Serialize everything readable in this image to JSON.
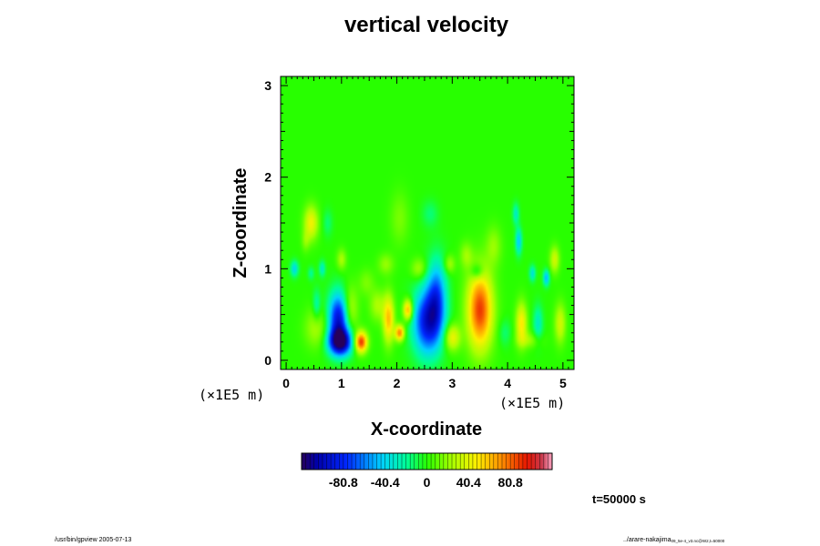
{
  "chart_data": {
    "type": "heatmap",
    "title": "vertical velocity",
    "xlabel": "X-coordinate",
    "ylabel": "Z-coordinate",
    "x_unit": "(×1E5 m)",
    "y_unit": "(×1E5 m)",
    "xlim": [
      -0.1,
      5.2
    ],
    "ylim": [
      -0.1,
      3.1
    ],
    "x_ticks": [
      "0",
      "1",
      "2",
      "3",
      "4",
      "5"
    ],
    "y_ticks": [
      "0",
      "1",
      "2",
      "3"
    ],
    "colorbar": {
      "range": [
        -121.2,
        121.2
      ],
      "ticks": [
        "-80.8",
        "-40.4",
        "0",
        "40.4",
        "80.8"
      ],
      "colormap": "rainbow"
    },
    "time_label": "t=50000 s",
    "background_value": 0,
    "features": [
      {
        "x": 0.95,
        "z": 0.45,
        "value": -95,
        "sx": 0.13,
        "sz": 0.2
      },
      {
        "x": 0.98,
        "z": 0.2,
        "value": -110,
        "sx": 0.15,
        "sz": 0.1
      },
      {
        "x": 2.55,
        "z": 0.42,
        "value": -90,
        "sx": 0.18,
        "sz": 0.25
      },
      {
        "x": 2.72,
        "z": 0.7,
        "value": -60,
        "sx": 0.12,
        "sz": 0.28
      },
      {
        "x": 3.5,
        "z": 0.55,
        "value": 90,
        "sx": 0.16,
        "sz": 0.3
      },
      {
        "x": 1.35,
        "z": 0.2,
        "value": 95,
        "sx": 0.08,
        "sz": 0.08
      },
      {
        "x": 1.15,
        "z": 0.55,
        "value": 35,
        "sx": 0.1,
        "sz": 0.18
      },
      {
        "x": 1.85,
        "z": 0.45,
        "value": 60,
        "sx": 0.07,
        "sz": 0.18
      },
      {
        "x": 2.05,
        "z": 0.3,
        "value": 75,
        "sx": 0.06,
        "sz": 0.06
      },
      {
        "x": 2.2,
        "z": 0.55,
        "value": 70,
        "sx": 0.06,
        "sz": 0.08
      },
      {
        "x": 1.65,
        "z": 0.6,
        "value": 25,
        "sx": 0.1,
        "sz": 0.12
      },
      {
        "x": 4.25,
        "z": 0.4,
        "value": 50,
        "sx": 0.07,
        "sz": 0.16
      },
      {
        "x": 4.95,
        "z": 0.4,
        "value": 35,
        "sx": 0.07,
        "sz": 0.15
      },
      {
        "x": 0.55,
        "z": 0.35,
        "value": 25,
        "sx": 0.15,
        "sz": 0.15
      },
      {
        "x": 0.55,
        "z": 0.6,
        "value": -25,
        "sx": 0.05,
        "sz": 0.12
      },
      {
        "x": 4.55,
        "z": 0.4,
        "value": -30,
        "sx": 0.06,
        "sz": 0.14
      },
      {
        "x": 3.0,
        "z": 0.25,
        "value": 45,
        "sx": 0.1,
        "sz": 0.1
      },
      {
        "x": 0.45,
        "z": 1.5,
        "value": 45,
        "sx": 0.09,
        "sz": 0.13
      },
      {
        "x": 0.75,
        "z": 1.5,
        "value": -15,
        "sx": 0.06,
        "sz": 0.1
      },
      {
        "x": 0.35,
        "z": 1.3,
        "value": 15,
        "sx": 0.05,
        "sz": 0.08
      },
      {
        "x": 0.15,
        "z": 1.0,
        "value": -40,
        "sx": 0.05,
        "sz": 0.06
      },
      {
        "x": 0.65,
        "z": 1.0,
        "value": -30,
        "sx": 0.04,
        "sz": 0.06
      },
      {
        "x": 0.45,
        "z": 0.95,
        "value": -20,
        "sx": 0.04,
        "sz": 0.05
      },
      {
        "x": 1.0,
        "z": 1.1,
        "value": 25,
        "sx": 0.06,
        "sz": 0.08
      },
      {
        "x": 3.45,
        "z": 0.97,
        "value": -30,
        "sx": 0.08,
        "sz": 0.06
      },
      {
        "x": 3.75,
        "z": 1.25,
        "value": 20,
        "sx": 0.1,
        "sz": 0.15
      },
      {
        "x": 4.2,
        "z": 1.3,
        "value": -45,
        "sx": 0.04,
        "sz": 0.1
      },
      {
        "x": 4.15,
        "z": 1.6,
        "value": -30,
        "sx": 0.04,
        "sz": 0.08
      },
      {
        "x": 4.45,
        "z": 0.95,
        "value": -35,
        "sx": 0.04,
        "sz": 0.06
      },
      {
        "x": 4.7,
        "z": 0.9,
        "value": -50,
        "sx": 0.04,
        "sz": 0.06
      },
      {
        "x": 4.85,
        "z": 1.1,
        "value": 35,
        "sx": 0.06,
        "sz": 0.1
      },
      {
        "x": 2.4,
        "z": 1.0,
        "value": 25,
        "sx": 0.1,
        "sz": 0.08
      },
      {
        "x": 1.8,
        "z": 1.05,
        "value": 20,
        "sx": 0.1,
        "sz": 0.08
      },
      {
        "x": 3.25,
        "z": 1.15,
        "value": 20,
        "sx": 0.08,
        "sz": 0.1
      },
      {
        "x": 2.95,
        "z": 1.05,
        "value": 25,
        "sx": 0.07,
        "sz": 0.07
      },
      {
        "x": 2.05,
        "z": 1.55,
        "value": 15,
        "sx": 0.12,
        "sz": 0.2
      },
      {
        "x": 2.6,
        "z": 1.6,
        "value": -15,
        "sx": 0.1,
        "sz": 0.1
      },
      {
        "x": 3.95,
        "z": 0.3,
        "value": -15,
        "sx": 0.08,
        "sz": 0.1
      },
      {
        "x": 4.4,
        "z": 0.22,
        "value": 20,
        "sx": 0.15,
        "sz": 0.06
      },
      {
        "x": 1.45,
        "z": 0.85,
        "value": 15,
        "sx": 0.1,
        "sz": 0.1
      }
    ]
  },
  "footer": {
    "left_note": "/usr/bin/gpview 2005-07-13",
    "right_note": "../arare-nakajima",
    "right_note_sub": "09_5e-4_v3.nc@W2,t=50000"
  },
  "colors": {
    "background": "#ffffff",
    "frame": "#000000"
  }
}
